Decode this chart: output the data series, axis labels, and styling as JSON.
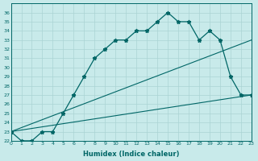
{
  "xlabel": "Humidex (Indice chaleur)",
  "bg_color": "#c8eaea",
  "grid_color": "#aad4d4",
  "line_color": "#006666",
  "xlim": [
    0,
    23
  ],
  "ylim": [
    22,
    37
  ],
  "yticks": [
    22,
    23,
    24,
    25,
    26,
    27,
    28,
    29,
    30,
    31,
    32,
    33,
    34,
    35,
    36
  ],
  "xticks": [
    0,
    1,
    2,
    3,
    4,
    5,
    6,
    7,
    8,
    9,
    10,
    11,
    12,
    13,
    14,
    15,
    16,
    17,
    18,
    19,
    20,
    21,
    22,
    23
  ],
  "hours": [
    0,
    1,
    2,
    3,
    4,
    5,
    6,
    7,
    8,
    9,
    10,
    11,
    12,
    13,
    14,
    15,
    16,
    17,
    18,
    19,
    20,
    21,
    22,
    23
  ],
  "humidex": [
    23,
    22,
    22,
    23,
    23,
    25,
    27,
    29,
    31,
    32,
    33,
    33,
    34,
    34,
    35,
    36,
    35,
    35,
    33,
    34,
    33,
    29,
    27,
    27
  ],
  "line_upper": [
    [
      0,
      23
    ],
    [
      23,
      33
    ]
  ],
  "line_lower": [
    [
      0,
      23
    ],
    [
      23,
      27
    ]
  ]
}
